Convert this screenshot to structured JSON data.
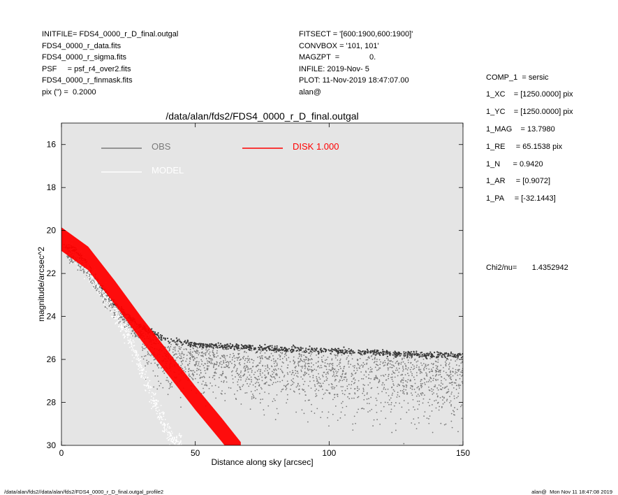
{
  "header_left": [
    "INITFILE= FDS4_0000_r_D_final.outgal",
    "FDS4_0000_r_data.fits",
    "FDS4_0000_r_sigma.fits",
    "PSF     = psf_r4_over2.fits",
    "FDS4_0000_r_finmask.fits",
    "pix (\") =  0.2000"
  ],
  "header_mid": [
    "FITSECT = '[600:1900,600:1900]'",
    "CONVBOX = '101, 101'",
    "MAGZPT  =              0.",
    "INFILE: 2019-Nov- 5",
    "PLOT: 11-Nov-2019 18:47:07.00",
    "alan@"
  ],
  "params": [
    "COMP_1  = sersic",
    "1_XC    = [1250.0000] pix",
    "1_YC    = [1250.0000] pix",
    "1_MAG    = 13.7980",
    "1_RE     = 65.1538 pix",
    "1_N      = 0.9420",
    "1_AR     = [0.9072]",
    "1_PA     = [-32.1443]"
  ],
  "chi2": "Chi2/nu=       1.4352942",
  "footer_left": "/data/alan/fds2//data/alan/fds2/FDS4_0000_r_D_final.outgal_profile2",
  "footer_right": "alan@  Mon Nov 11 18:47:08 2019",
  "colors": {
    "background": "#e5e5e5",
    "obs": "#7a7a7a",
    "model": "#ffffff",
    "disk": "#ff0000",
    "dark_points": "#3a3a3a"
  },
  "chart_data": {
    "type": "scatter",
    "title": "/data/alan/fds2/FDS4_0000_r_D_final.outgal",
    "xlabel": "Distance along sky [arcsec]",
    "ylabel": "magnitude/arcsec^2",
    "xlim": [
      0,
      150
    ],
    "ylim": [
      30,
      15
    ],
    "y_inverted": true,
    "xticks": [
      0,
      50,
      100,
      150
    ],
    "yticks": [
      16,
      18,
      20,
      22,
      24,
      26,
      28,
      30
    ],
    "legend": [
      {
        "label": "OBS",
        "color": "#7a7a7a"
      },
      {
        "label": "MODEL",
        "color": "#ffffff"
      },
      {
        "label": "DISK  1.000",
        "color": "#ff0000"
      }
    ],
    "series": [
      {
        "name": "OBS",
        "kind": "scatter",
        "x": [
          1,
          5,
          10,
          15,
          20,
          25,
          30,
          35,
          40,
          50,
          60,
          80,
          100,
          120,
          140,
          150
        ],
        "y": [
          20.7,
          20.9,
          21.6,
          22.6,
          23.4,
          24.0,
          24.5,
          24.8,
          25.1,
          25.3,
          25.4,
          25.5,
          25.6,
          25.7,
          25.8,
          25.8
        ]
      },
      {
        "name": "MODEL",
        "kind": "scatter",
        "x": [
          1,
          5,
          10,
          15,
          20,
          25,
          30,
          35,
          40,
          42
        ],
        "y": [
          20.5,
          21.0,
          21.8,
          22.7,
          23.8,
          25.0,
          26.5,
          28.0,
          29.5,
          30.0
        ]
      },
      {
        "name": "DISK  1.000",
        "kind": "band",
        "x": [
          0,
          10,
          20,
          30,
          40,
          50,
          60,
          67
        ],
        "y": [
          20.4,
          21.3,
          22.9,
          24.6,
          26.2,
          27.8,
          29.3,
          30.4
        ],
        "y_spread": 0.55
      }
    ]
  }
}
